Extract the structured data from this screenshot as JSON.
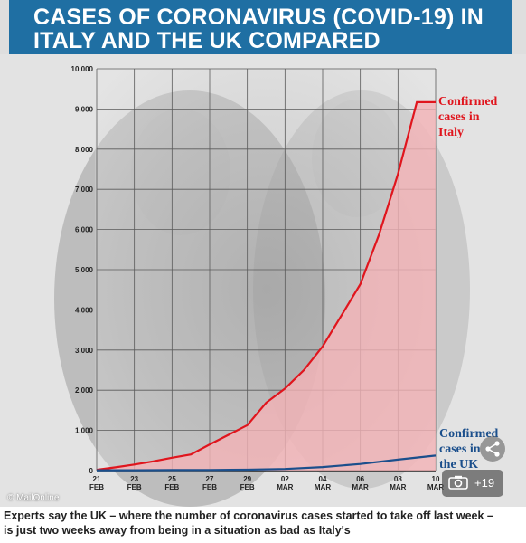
{
  "title_line1": "CASES OF CORONAVIRUS (COVID-19) IN",
  "title_line2": "ITALY AND THE UK COMPARED",
  "caption_line1": "Experts say the UK – where the number of coronavirus cases started to take off last week –",
  "caption_line2": "is just two weeks away from being in a situation as bad as Italy's",
  "credit": "© MailOnline",
  "gallery_count": "+19",
  "icons": [
    "share-icon",
    "camera-icon"
  ],
  "colors": {
    "title_bar": "#1f6fa3",
    "italy": "#e0151d",
    "uk": "#1b4f8c",
    "italy_fill": "#f4b3b6"
  },
  "chart_data": {
    "type": "line",
    "title": "CASES OF CORONAVIRUS (COVID-19) IN ITALY AND THE UK COMPARED",
    "ylim": [
      0,
      10000
    ],
    "yticks": [
      0,
      1000,
      2000,
      3000,
      4000,
      5000,
      6000,
      7000,
      8000,
      9000,
      10000
    ],
    "ytick_labels": [
      "0",
      "1,000",
      "2,000",
      "3,000",
      "4,000",
      "5,000",
      "6,000",
      "7,000",
      "8,000",
      "9,000",
      "10,000"
    ],
    "x_tick_labels": [
      {
        "day": "21",
        "month": "FEB"
      },
      {
        "day": "23",
        "month": "FEB"
      },
      {
        "day": "25",
        "month": "FEB"
      },
      {
        "day": "27",
        "month": "FEB"
      },
      {
        "day": "29",
        "month": "FEB"
      },
      {
        "day": "02",
        "month": "MAR"
      },
      {
        "day": "04",
        "month": "MAR"
      },
      {
        "day": "06",
        "month": "MAR"
      },
      {
        "day": "08",
        "month": "MAR"
      },
      {
        "day": "10",
        "month": "MAR"
      }
    ],
    "grid": true,
    "series": [
      {
        "name": "Confirmed cases in Italy",
        "color": "#e0151d",
        "filled": true,
        "x": [
          "21 FEB",
          "22 FEB",
          "23 FEB",
          "24 FEB",
          "25 FEB",
          "26 FEB",
          "27 FEB",
          "28 FEB",
          "29 FEB",
          "01 MAR",
          "02 MAR",
          "03 MAR",
          "04 MAR",
          "05 MAR",
          "06 MAR",
          "07 MAR",
          "08 MAR",
          "09 MAR",
          "10 MAR"
        ],
        "values": [
          20,
          80,
          150,
          230,
          320,
          400,
          650,
          890,
          1130,
          1690,
          2040,
          2500,
          3090,
          3860,
          4640,
          5880,
          7380,
          9170,
          9170
        ]
      },
      {
        "name": "Confirmed cases in the UK",
        "color": "#1b4f8c",
        "filled": false,
        "x": [
          "21 FEB",
          "23 FEB",
          "25 FEB",
          "27 FEB",
          "29 FEB",
          "02 MAR",
          "04 MAR",
          "06 MAR",
          "08 MAR",
          "10 MAR"
        ],
        "values": [
          9,
          9,
          13,
          15,
          23,
          40,
          87,
          164,
          273,
          373
        ]
      }
    ]
  }
}
